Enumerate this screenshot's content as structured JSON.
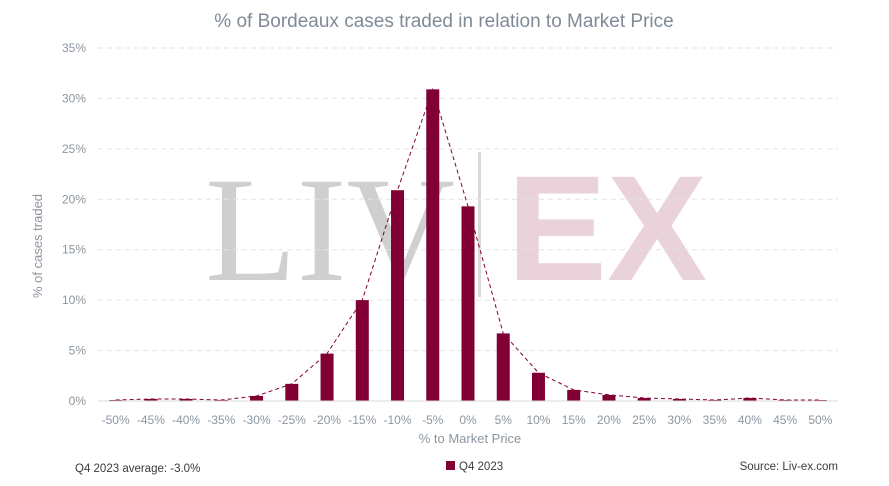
{
  "chart_data": {
    "type": "bar",
    "title": "% of Bordeaux cases traded in relation to Market Price",
    "xlabel": "% to Market Price",
    "ylabel": "% of cases traded",
    "ylim": [
      0,
      35
    ],
    "yticks": [
      "0%",
      "5%",
      "10%",
      "15%",
      "20%",
      "25%",
      "30%",
      "35%"
    ],
    "categories": [
      "-50%",
      "-45%",
      "-40%",
      "-35%",
      "-30%",
      "-25%",
      "-20%",
      "-15%",
      "-10%",
      "-5%",
      "0%",
      "5%",
      "10%",
      "15%",
      "20%",
      "25%",
      "30%",
      "35%",
      "40%",
      "45%",
      "50%"
    ],
    "series": [
      {
        "name": "Q4 2023",
        "color": "#800033",
        "values": [
          0.1,
          0.2,
          0.2,
          0.1,
          0.5,
          1.7,
          4.7,
          10.0,
          20.9,
          30.9,
          19.3,
          6.7,
          2.8,
          1.1,
          0.6,
          0.3,
          0.2,
          0.1,
          0.3,
          0.1,
          0.1
        ]
      }
    ],
    "trendline": {
      "style": "dashed",
      "color": "#800033"
    },
    "grid": true,
    "legend": "bottom-center",
    "watermark": {
      "left": "LIV",
      "right": "EX"
    },
    "annotation_left": "Q4 2023 average: -3.0%",
    "annotation_right": "Source: Liv-ex.com"
  }
}
